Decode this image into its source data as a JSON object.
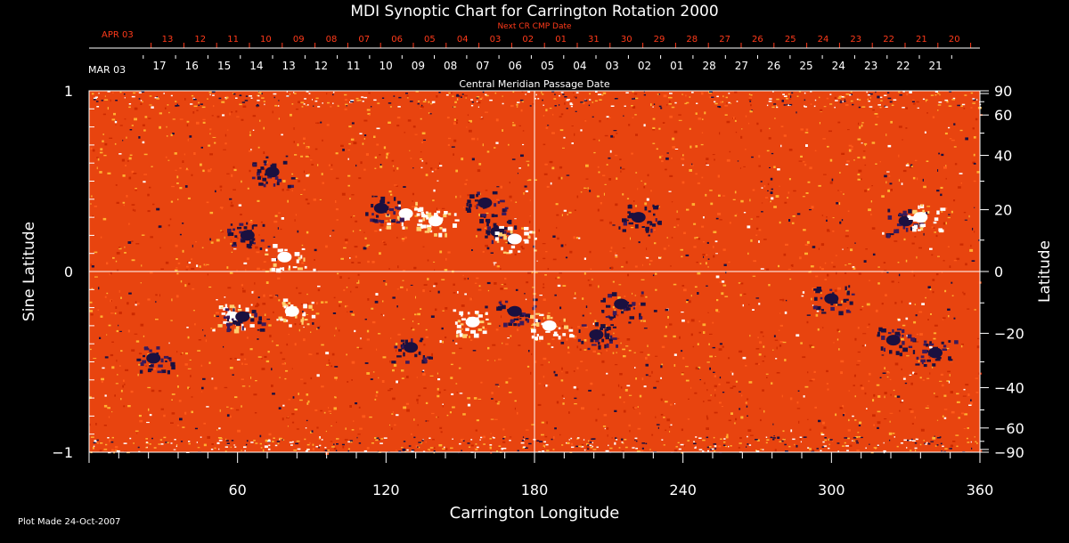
{
  "chart_data": {
    "type": "heatmap",
    "title": "MDI Synoptic Chart for Carrington Rotation 2000",
    "xlabel": "Carrington Longitude",
    "ylabel_left": "Sine Latitude",
    "ylabel_right": "Latitude",
    "xlim": [
      0,
      360
    ],
    "ylim": [
      -1,
      1
    ],
    "x_ticks": [
      "60",
      "120",
      "180",
      "240",
      "300",
      "360"
    ],
    "y_ticks_left": [
      {
        "value": 1,
        "label": "1"
      },
      {
        "value": 0,
        "label": "0"
      },
      {
        "value": -1,
        "label": "−1"
      }
    ],
    "y_ticks_right": [
      {
        "deg": 90,
        "label": "90"
      },
      {
        "deg": 60,
        "label": "60"
      },
      {
        "deg": 40,
        "label": "40"
      },
      {
        "deg": 20,
        "label": "20"
      },
      {
        "deg": 0,
        "label": "0"
      },
      {
        "deg": -20,
        "label": "−20"
      },
      {
        "deg": -40,
        "label": "−40"
      },
      {
        "deg": -60,
        "label": "−60"
      },
      {
        "deg": -90,
        "label": "−90"
      }
    ],
    "cmp_axis": {
      "title": "Central Meridian Passage Date",
      "month_label": "MAR 03",
      "dates": [
        "17",
        "16",
        "15",
        "14",
        "13",
        "12",
        "11",
        "10",
        "09",
        "08",
        "07",
        "06",
        "05",
        "04",
        "03",
        "02",
        "01",
        "28",
        "27",
        "26",
        "25",
        "24",
        "23",
        "22",
        "21"
      ]
    },
    "next_cmp_axis": {
      "title": "Next CR CMP Date",
      "month_label": "APR 03",
      "dates": [
        "13",
        "12",
        "11",
        "10",
        "09",
        "08",
        "07",
        "06",
        "05",
        "04",
        "03",
        "02",
        "01",
        "31",
        "30",
        "29",
        "28",
        "27",
        "26",
        "25",
        "24",
        "23",
        "22",
        "21",
        "20"
      ]
    },
    "colorscale": [
      "#1a1040",
      "#cc2a00",
      "#ff5a1a",
      "#ffb030",
      "#ffffff"
    ],
    "plot_bg": "#e8440f",
    "active_regions": [
      {
        "lon": 64,
        "sinlat": 0.2,
        "polarity": "negative"
      },
      {
        "lon": 79,
        "sinlat": 0.08,
        "polarity": "positive"
      },
      {
        "lon": 74,
        "sinlat": 0.55,
        "polarity": "negative"
      },
      {
        "lon": 128,
        "sinlat": 0.32,
        "polarity": "positive"
      },
      {
        "lon": 118,
        "sinlat": 0.35,
        "polarity": "negative"
      },
      {
        "lon": 140,
        "sinlat": 0.28,
        "polarity": "positive"
      },
      {
        "lon": 165,
        "sinlat": 0.22,
        "polarity": "negative"
      },
      {
        "lon": 172,
        "sinlat": 0.18,
        "polarity": "positive"
      },
      {
        "lon": 160,
        "sinlat": 0.38,
        "polarity": "negative"
      },
      {
        "lon": 222,
        "sinlat": 0.3,
        "polarity": "negative"
      },
      {
        "lon": 330,
        "sinlat": 0.28,
        "polarity": "negative"
      },
      {
        "lon": 336,
        "sinlat": 0.3,
        "polarity": "positive"
      },
      {
        "lon": 58,
        "sinlat": -0.25,
        "polarity": "positive"
      },
      {
        "lon": 62,
        "sinlat": -0.25,
        "polarity": "negative"
      },
      {
        "lon": 82,
        "sinlat": -0.22,
        "polarity": "positive"
      },
      {
        "lon": 26,
        "sinlat": -0.48,
        "polarity": "negative"
      },
      {
        "lon": 130,
        "sinlat": -0.42,
        "polarity": "negative"
      },
      {
        "lon": 155,
        "sinlat": -0.28,
        "polarity": "positive"
      },
      {
        "lon": 172,
        "sinlat": -0.22,
        "polarity": "negative"
      },
      {
        "lon": 186,
        "sinlat": -0.3,
        "polarity": "positive"
      },
      {
        "lon": 215,
        "sinlat": -0.18,
        "polarity": "negative"
      },
      {
        "lon": 205,
        "sinlat": -0.35,
        "polarity": "negative"
      },
      {
        "lon": 300,
        "sinlat": -0.15,
        "polarity": "negative"
      },
      {
        "lon": 325,
        "sinlat": -0.38,
        "polarity": "negative"
      },
      {
        "lon": 342,
        "sinlat": -0.45,
        "polarity": "negative"
      }
    ]
  },
  "footer": {
    "plot_made": "Plot Made 24-Oct-2007"
  }
}
